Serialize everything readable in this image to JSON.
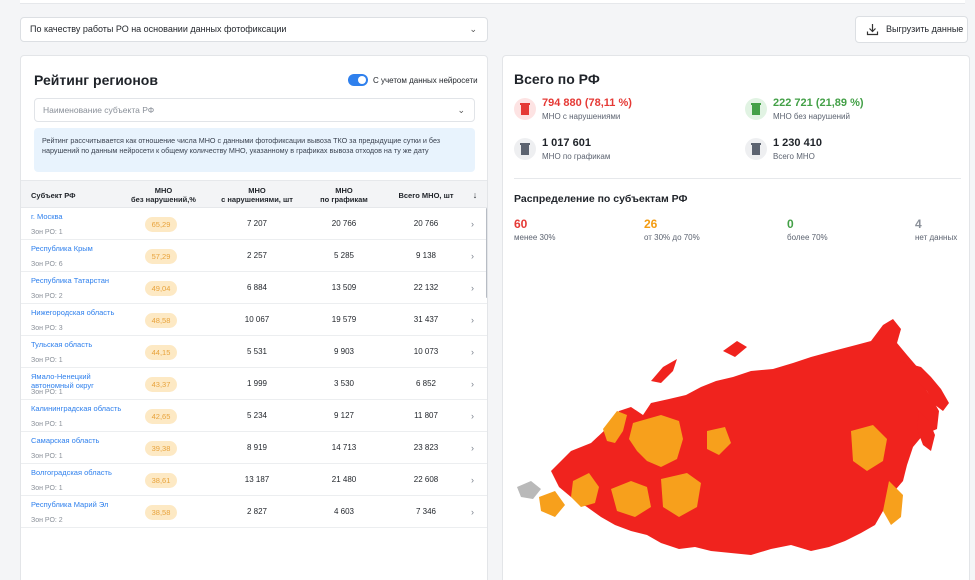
{
  "filter": {
    "value": "По качеству работы РО на основании данных фотофиксации"
  },
  "export": {
    "label": "Выгрузить данные"
  },
  "ranking": {
    "title": "Рейтинг регионов",
    "toggle_label": "С учетом данных нейросети",
    "region_placeholder": "Наименование субъекта РФ",
    "info": "Рейтинг рассчитывается как отношение числа МНО с данными фотофиксации вывоза ТКО за предыдущие сутки и без нарушений по данным нейросети к общему количеству МНО, указанному в графиках вывоза отходов на ту же дату",
    "columns": [
      "Субъект РФ",
      "МНО\nбез нарушений,%",
      "МНО\nс нарушениями, шт",
      "МНО\nпо графикам",
      "Всего МНО, шт"
    ],
    "rows": [
      {
        "name": "г. Москва",
        "zones": "Зон РО: 1",
        "pct": "65,29",
        "viol": "7 207",
        "sched": "20 766",
        "total": "20 766"
      },
      {
        "name": "Республика Крым",
        "zones": "Зон РО: 6",
        "pct": "57,29",
        "viol": "2 257",
        "sched": "5 285",
        "total": "9 138"
      },
      {
        "name": "Республика Татарстан",
        "zones": "Зон РО: 2",
        "pct": "49,04",
        "viol": "6 884",
        "sched": "13 509",
        "total": "22 132"
      },
      {
        "name": "Нижегородская область",
        "zones": "Зон РО: 3",
        "pct": "48,58",
        "viol": "10 067",
        "sched": "19 579",
        "total": "31 437"
      },
      {
        "name": "Тульская область",
        "zones": "Зон РО: 1",
        "pct": "44,15",
        "viol": "5 531",
        "sched": "9 903",
        "total": "10 073"
      },
      {
        "name": "Ямало-Ненецкий автономный округ",
        "zones": "Зон РО: 1",
        "pct": "43,37",
        "viol": "1 999",
        "sched": "3 530",
        "total": "6 852"
      },
      {
        "name": "Калининградская область",
        "zones": "Зон РО: 1",
        "pct": "42,65",
        "viol": "5 234",
        "sched": "9 127",
        "total": "11 807"
      },
      {
        "name": "Самарская область",
        "zones": "Зон РО: 1",
        "pct": "39,38",
        "viol": "8 919",
        "sched": "14 713",
        "total": "23 823"
      },
      {
        "name": "Волгоградская область",
        "zones": "Зон РО: 1",
        "pct": "38,61",
        "viol": "13 187",
        "sched": "21 480",
        "total": "22 608"
      },
      {
        "name": "Республика Марий Эл",
        "zones": "Зон РО: 2",
        "pct": "38,58",
        "viol": "2 827",
        "sched": "4 603",
        "total": "7 346"
      }
    ]
  },
  "summary": {
    "title": "Всего по РФ",
    "violations": {
      "value": "794 880 (78,11 %)",
      "label": "МНО с нарушениями",
      "color": "#e53935"
    },
    "no_violations": {
      "value": "222 721 (21,89 %)",
      "label": "МНО без нарушений",
      "color": "#43a047"
    },
    "by_schedule": {
      "value": "1 017 601",
      "label": "МНО по графикам"
    },
    "total": {
      "value": "1 230 410",
      "label": "Всего МНО"
    }
  },
  "distribution": {
    "title": "Распределение по субъектам РФ",
    "items": [
      {
        "count": "60",
        "label": "менее 30%",
        "color": "#e53935"
      },
      {
        "count": "26",
        "label": "от 30% до 70%",
        "color": "#f39c12"
      },
      {
        "count": "0",
        "label": "более 70%",
        "color": "#43a047"
      },
      {
        "count": "4",
        "label": "нет данных",
        "color": "#8a9099"
      }
    ]
  },
  "colors": {
    "accent": "#2f80ed",
    "bad": "#f0231e",
    "mid": "#f7a01c",
    "nodata": "#b9b9b9"
  }
}
